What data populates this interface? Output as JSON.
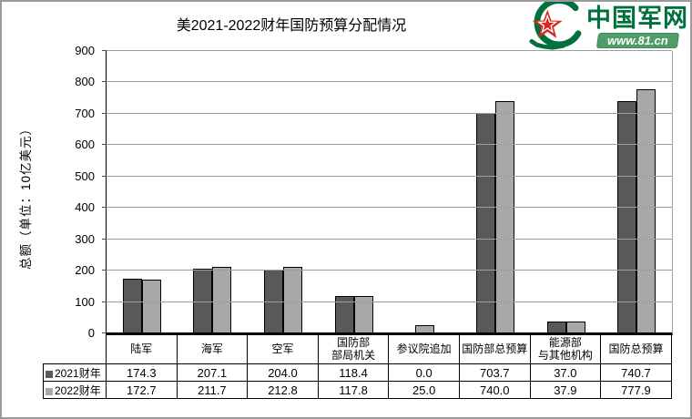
{
  "page": {
    "site_logo": {
      "site_name": "中国军网",
      "site_url": "www.81.cn",
      "brand_green": "#00713d",
      "star_red": "#d8281c",
      "banner_green": "#4f9d68"
    }
  },
  "chart_data": {
    "type": "bar",
    "title": "美2021-2022财年国防预算分配情况",
    "ylabel": "总额（单位：10亿美元）",
    "ylim": [
      0,
      900
    ],
    "ytick_step": 100,
    "grid": true,
    "grid_color": "#9e9e9e",
    "legend_position": "bottom-table",
    "categories": [
      "陆军",
      "海军",
      "空军",
      "国防部\n部局机关",
      "参议院追加",
      "国防部总预算",
      "能源部\n与其他机构",
      "国防总预算"
    ],
    "series": [
      {
        "name": "2021财年",
        "color": "#595959",
        "values": [
          174.3,
          207.1,
          204.0,
          118.4,
          0.0,
          703.7,
          37.0,
          740.7
        ]
      },
      {
        "name": "2022财年",
        "color": "#a8a8a8",
        "values": [
          172.7,
          211.7,
          212.8,
          117.8,
          25.0,
          740.0,
          37.9,
          777.9
        ]
      }
    ]
  }
}
